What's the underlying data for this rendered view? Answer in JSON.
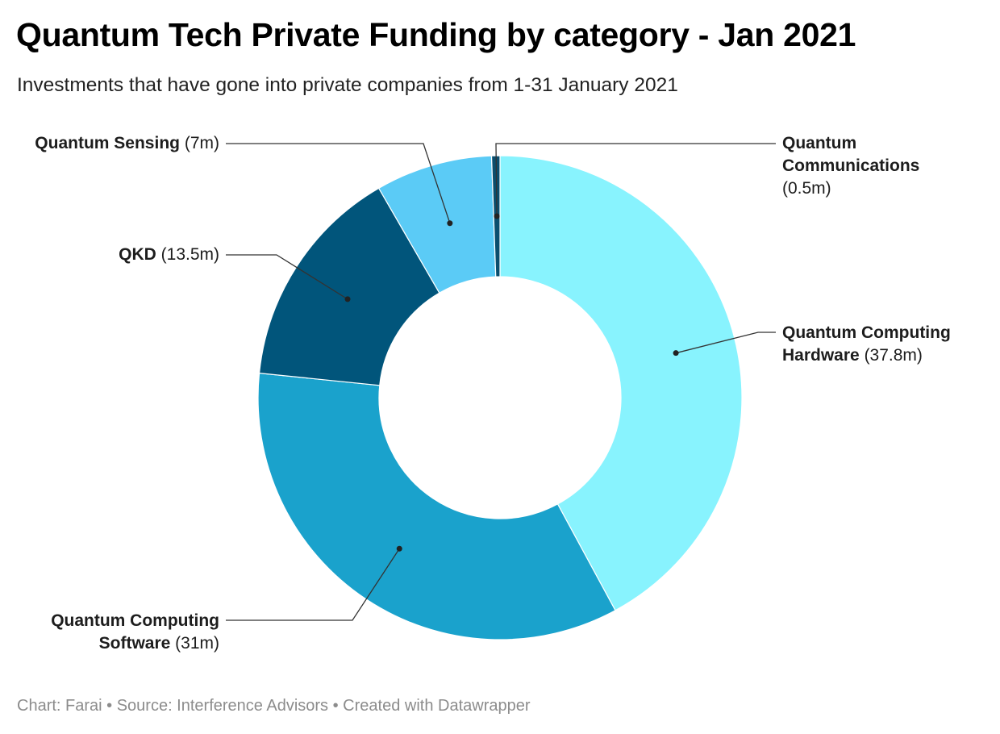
{
  "chart_data": {
    "type": "pie",
    "variant": "donut",
    "title": "Quantum Tech Private Funding by category - Jan 2021",
    "subtitle": "Investments that have gone into private companies from 1-31 January 2021",
    "series": [
      {
        "name": "Quantum Computing Hardware",
        "value": 37.8,
        "display": "(37.8m)",
        "color": "#88f3fe"
      },
      {
        "name": "Quantum Computing Software",
        "value": 31,
        "display": "(31m)",
        "color": "#1aa2cc"
      },
      {
        "name": "QKD",
        "value": 13.5,
        "display": "(13.5m)",
        "color": "#01557b"
      },
      {
        "name": "Quantum Sensing",
        "value": 7,
        "display": "(7m)",
        "color": "#5bcbf6"
      },
      {
        "name": "Quantum Communications",
        "value": 0.5,
        "display": "(0.5m)",
        "color": "#0a4e6e"
      }
    ],
    "footer": "Chart: Farai • Source: Interference Advisors • Created with Datawrapper"
  },
  "labels": {
    "hardware": {
      "line1": "Quantum Computing",
      "name2": "Hardware",
      "value": "(37.8m)"
    },
    "software": {
      "line1": "Quantum Computing",
      "name2": "Software",
      "value": "(31m)"
    },
    "qkd": {
      "name": "QKD",
      "value": "(13.5m)"
    },
    "sensing": {
      "name": "Quantum Sensing",
      "value": "(7m)"
    },
    "communications": {
      "line1": "Quantum",
      "line2": "Communications",
      "value": "(0.5m)"
    }
  }
}
